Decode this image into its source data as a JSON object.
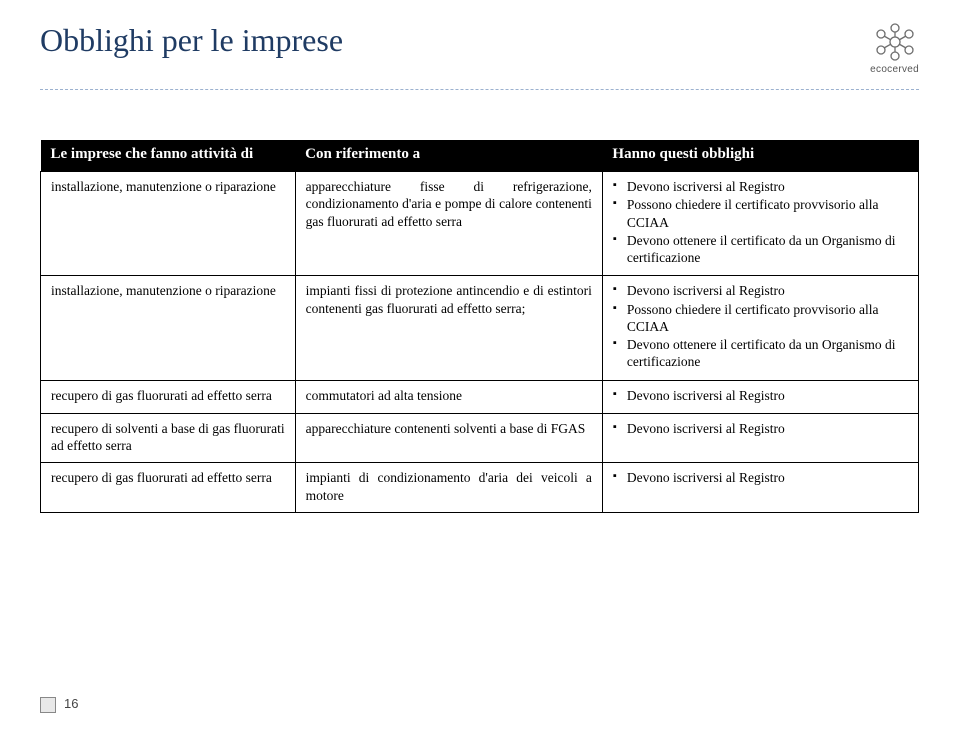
{
  "title": "Obblighi per le imprese",
  "logo_brand": "ecocerved",
  "page_number": "16",
  "table": {
    "headers": {
      "c1": "Le imprese che fanno attività di",
      "c2": "Con riferimento a",
      "c3": "Hanno questi obblighi"
    },
    "rows": [
      {
        "c1": "installazione, manutenzione o riparazione",
        "c2": "apparecchiature fisse di refrigerazione, condizionamento d'aria e pompe di calore contenenti gas fluorurati ad effetto serra",
        "c3": [
          "Devono iscriversi al Registro",
          "Possono chiedere il certificato provvisorio alla CCIAA",
          "Devono ottenere il certificato da un Organismo di certificazione"
        ]
      },
      {
        "c1": "installazione, manutenzione o riparazione",
        "c2": "impianti fissi di protezione antincendio e di estintori contenenti gas fluorurati ad effetto serra;",
        "c3": [
          "Devono iscriversi al Registro",
          "Possono chiedere il certificato provvisorio alla CCIAA",
          "Devono ottenere il certificato da un Organismo di certificazione"
        ]
      },
      {
        "c1": "recupero di gas fluorurati ad effetto serra",
        "c2": "commutatori ad alta tensione",
        "c3": [
          "Devono iscriversi al Registro"
        ]
      },
      {
        "c1": "recupero di solventi a base di gas fluorurati ad effetto serra",
        "c2": "apparecchiature contenenti solventi a base di FGAS",
        "c3": [
          "Devono iscriversi al Registro"
        ]
      },
      {
        "c1": "recupero di gas fluorurati ad effetto serra",
        "c2": "impianti di condizionamento d'aria dei veicoli a motore",
        "c3": [
          "Devono iscriversi al Registro"
        ]
      }
    ]
  },
  "colors": {
    "title": "#1f3b63",
    "dash": "#9bb1cf",
    "header_bg": "#000000",
    "header_fg": "#ffffff"
  }
}
